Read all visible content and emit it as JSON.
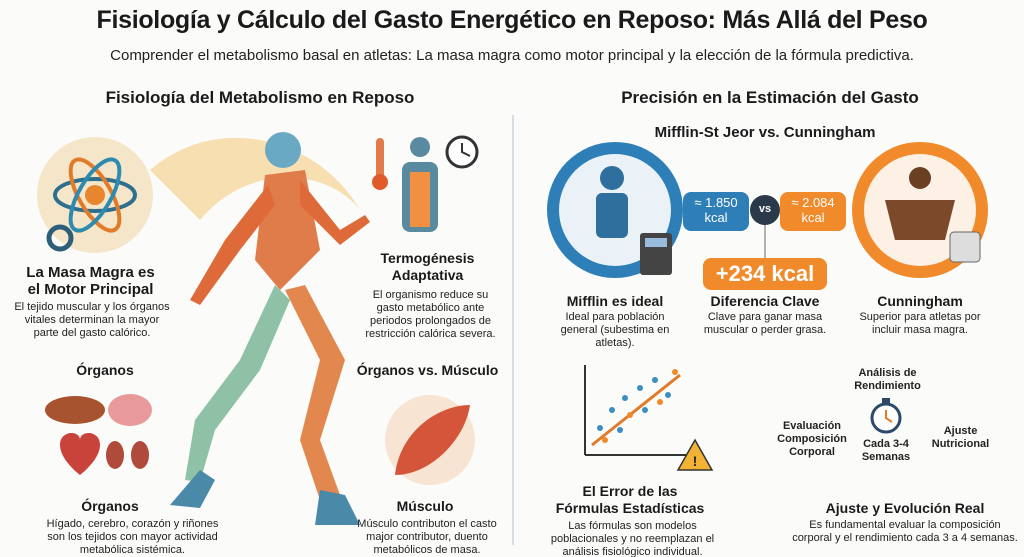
{
  "header": {
    "title": "Fisiología y Cálculo del Gasto Energético en Reposo: Más Allá del Peso",
    "subtitle": "Comprender el metabolismo basal en atletas: La masa magra como motor principal y la elección de la fórmula predictiva."
  },
  "left": {
    "heading": "Fisiología del Metabolismo en Reposo",
    "lean_mass": {
      "title": "La Masa Magra es el Motor Principal",
      "text": "El tejido muscular y los órganos vitales determinan la mayor parte del gasto calórico."
    },
    "thermogenesis": {
      "title": "Termogénesis Adaptativa",
      "text": "El organismo reduce su gasto metabólico ante periodos prolongados de restricción calórica severa."
    },
    "organs_label": "Órganos",
    "organs_vs_muscle_label": "Órganos vs. Músculo",
    "organs": {
      "title": "Órganos",
      "text": "Hígado, cerebro, corazón y riñones son los tejidos con mayor actividad metabólica sistémica."
    },
    "muscle": {
      "title": "Músculo",
      "text": "Músculo contributon el casto major contributor, duento metabólicos de masa."
    }
  },
  "right": {
    "heading": "Precisión en la Estimación del Gasto",
    "subheading": "Mifflin-St Jeor vs. Cunningham",
    "mifflin_value": "≈ 1.850 kcal",
    "vs": "vs",
    "cunningham_value": "≈ 2.084 kcal",
    "difference_value": "+234 kcal",
    "mifflin": {
      "title": "Mifflin es ideal",
      "text": "Ideal para población general (subestima en atletas)."
    },
    "difference": {
      "title": "Diferencia Clave",
      "text": "Clave para ganar masa muscular o perder grasa."
    },
    "cunningham": {
      "title": "Cunningham",
      "text": "Superior para atletas por incluir masa magra."
    },
    "error": {
      "title": "El Error de las Fórmulas Estadísticas",
      "text": "Las fórmulas son modelos poblacionales y no reemplazan el análisis fisiológico individual."
    },
    "cycle": {
      "top": "Análisis de Rendimiento",
      "left": "Evaluación Composición Corporal",
      "center": "Cada 3-4 Semanas",
      "right": "Ajuste Nutricional"
    },
    "real": {
      "title": "Ajuste y Evolución Real",
      "text": "Es fundamental evaluar la composición corporal y el rendimiento cada 3 a 4 semanas."
    }
  }
}
